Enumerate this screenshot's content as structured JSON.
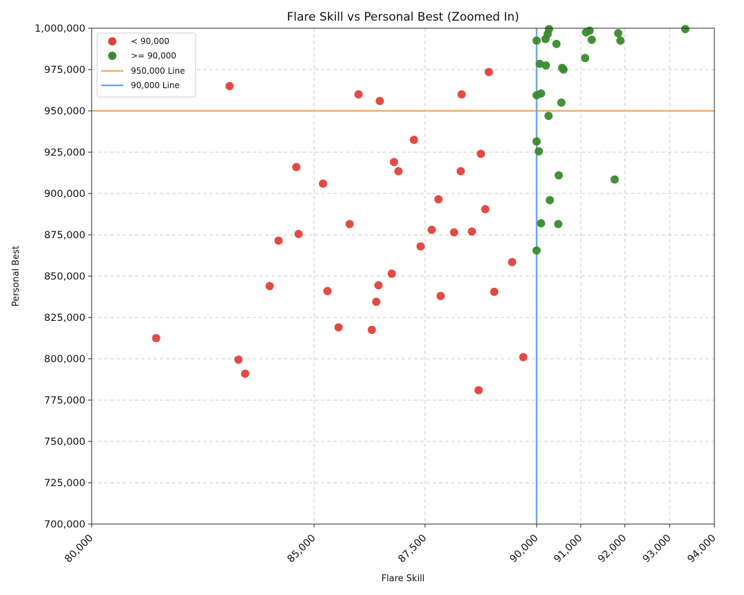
{
  "chart_data": {
    "type": "scatter",
    "title": "Flare Skill vs Personal Best (Zoomed In)",
    "xlabel": "Flare Skill",
    "ylabel": "Personal Best",
    "xlim": [
      80000,
      94000
    ],
    "ylim": [
      700000,
      1000000
    ],
    "grid": true,
    "legend_position": "top-left",
    "x_scale": "piecewise",
    "x_ticks": [
      {
        "value": 80000,
        "label": "80,000"
      },
      {
        "value": 85000,
        "label": "85,000"
      },
      {
        "value": 87500,
        "label": "87,500"
      },
      {
        "value": 90000,
        "label": "90,000"
      },
      {
        "value": 91000,
        "label": "91,000"
      },
      {
        "value": 92000,
        "label": "92,000"
      },
      {
        "value": 93000,
        "label": "93,000"
      },
      {
        "value": 94000,
        "label": "94,000"
      }
    ],
    "y_ticks": [
      {
        "value": 700000,
        "label": "700,000"
      },
      {
        "value": 725000,
        "label": "725,000"
      },
      {
        "value": 750000,
        "label": "750,000"
      },
      {
        "value": 775000,
        "label": "775,000"
      },
      {
        "value": 800000,
        "label": "800,000"
      },
      {
        "value": 825000,
        "label": "825,000"
      },
      {
        "value": 850000,
        "label": "850,000"
      },
      {
        "value": 875000,
        "label": "875,000"
      },
      {
        "value": 900000,
        "label": "900,000"
      },
      {
        "value": 925000,
        "label": "925,000"
      },
      {
        "value": 950000,
        "label": "950,000"
      },
      {
        "value": 975000,
        "label": "975,000"
      },
      {
        "value": 1000000,
        "label": "1,000,000"
      }
    ],
    "reference_lines": [
      {
        "name": "950,000 Line",
        "orientation": "horizontal",
        "value": 950000,
        "color": "#f0b060"
      },
      {
        "name": "90,000 Line",
        "orientation": "vertical",
        "value": 90000,
        "color": "#6fa8e4"
      }
    ],
    "series": [
      {
        "name": "< 90,000",
        "color": "#e0413a",
        "points": [
          [
            81450,
            812500
          ],
          [
            83100,
            965000
          ],
          [
            83300,
            799500
          ],
          [
            83450,
            791000
          ],
          [
            84000,
            844000
          ],
          [
            84200,
            871500
          ],
          [
            84600,
            916000
          ],
          [
            84650,
            875500
          ],
          [
            85200,
            906000
          ],
          [
            85300,
            841000
          ],
          [
            85550,
            819000
          ],
          [
            85800,
            881500
          ],
          [
            86000,
            960000
          ],
          [
            86300,
            817500
          ],
          [
            86400,
            834500
          ],
          [
            86450,
            844500
          ],
          [
            86480,
            956000
          ],
          [
            86750,
            851500
          ],
          [
            86800,
            919000
          ],
          [
            86900,
            913500
          ],
          [
            87250,
            932500
          ],
          [
            87400,
            868000
          ],
          [
            87650,
            878000
          ],
          [
            87800,
            896500
          ],
          [
            87850,
            838000
          ],
          [
            88150,
            876500
          ],
          [
            88300,
            913500
          ],
          [
            88320,
            960000
          ],
          [
            88550,
            877000
          ],
          [
            88700,
            781000
          ],
          [
            88750,
            924000
          ],
          [
            88850,
            890500
          ],
          [
            88930,
            973500
          ],
          [
            89050,
            840500
          ],
          [
            89450,
            858500
          ],
          [
            89700,
            801000
          ]
        ]
      },
      {
        "name": ">= 90,000",
        "color": "#3a8a2e",
        "points": [
          [
            90000,
            992500
          ],
          [
            90000,
            931500
          ],
          [
            90000,
            865500
          ],
          [
            90000,
            959500
          ],
          [
            90050,
            925500
          ],
          [
            90070,
            978500
          ],
          [
            90100,
            960500
          ],
          [
            90100,
            882000
          ],
          [
            90200,
            993500
          ],
          [
            90210,
            977500
          ],
          [
            90250,
            996500
          ],
          [
            90270,
            947000
          ],
          [
            90280,
            999500
          ],
          [
            90300,
            896000
          ],
          [
            90450,
            990500
          ],
          [
            90490,
            881500
          ],
          [
            90500,
            911000
          ],
          [
            90560,
            955000
          ],
          [
            90580,
            976000
          ],
          [
            90610,
            975000
          ],
          [
            91100,
            982000
          ],
          [
            91120,
            997500
          ],
          [
            91200,
            998500
          ],
          [
            91250,
            993000
          ],
          [
            91770,
            908500
          ],
          [
            91850,
            997000
          ],
          [
            91900,
            992500
          ],
          [
            93350,
            999500
          ]
        ]
      }
    ]
  }
}
